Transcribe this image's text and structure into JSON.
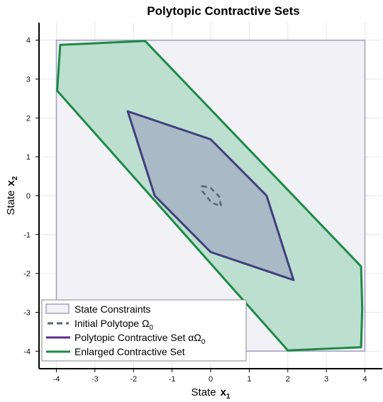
{
  "chart_data": {
    "type": "area",
    "title": "Polytopic Contractive Sets",
    "xlabel": "State",
    "xlabel_var": "x",
    "xlabel_sub": "1",
    "ylabel": "State",
    "ylabel_var": "x",
    "ylabel_sub": "2",
    "xlim": [
      -4.45,
      4.45
    ],
    "ylim": [
      -4.45,
      4.45
    ],
    "x_ticks": [
      -4,
      -3,
      -2,
      -1,
      0,
      1,
      2,
      3,
      4
    ],
    "y_ticks": [
      -4,
      -3,
      -2,
      -1,
      0,
      1,
      2,
      3,
      4
    ],
    "grid": true,
    "legend_position": "lower-left",
    "series": [
      {
        "key": "constraints",
        "name": "State Constraints",
        "kind": "filled",
        "fill": "#f1f1f6",
        "stroke": "#a5a2c0",
        "points": [
          [
            -4,
            -4
          ],
          [
            4,
            -4
          ],
          [
            4,
            4
          ],
          [
            -4,
            4
          ]
        ]
      },
      {
        "key": "enlarged",
        "name": "Enlarged Contractive Set",
        "kind": "filled",
        "fill": "#bddfd0",
        "stroke": "#1d8a46",
        "points": [
          [
            -1.7,
            3.98
          ],
          [
            -3.9,
            3.88
          ],
          [
            -3.98,
            2.7
          ],
          [
            2.0,
            -3.98
          ],
          [
            3.9,
            -3.9
          ],
          [
            3.93,
            -2.9
          ],
          [
            3.9,
            -1.82
          ]
        ]
      },
      {
        "key": "alpha",
        "name": "Polytopic Contractive Set αΩ",
        "name_sub": "0",
        "kind": "filled",
        "fill": "#a9b9c5",
        "stroke": "#403e7e",
        "points": [
          [
            -2.15,
            2.17
          ],
          [
            0.0,
            1.45
          ],
          [
            1.45,
            0.0
          ],
          [
            2.15,
            -2.17
          ],
          [
            0.0,
            -1.45
          ],
          [
            -1.45,
            0.0
          ]
        ]
      },
      {
        "key": "initial",
        "name": "Initial Polytope Ω",
        "name_sub": "0",
        "kind": "dashed",
        "stroke": "#5e6478",
        "points": [
          [
            -0.22,
            0.25
          ],
          [
            0.0,
            0.2
          ],
          [
            0.22,
            -0.02
          ],
          [
            0.27,
            -0.27
          ],
          [
            0.03,
            -0.18
          ],
          [
            -0.22,
            0.12
          ]
        ]
      }
    ],
    "legend": [
      {
        "key": "constraints",
        "label": "State Constraints",
        "swatch": "box",
        "color": "#a5a2c0"
      },
      {
        "key": "initial",
        "label": "Initial  Polytope  Ω",
        "sub": "0",
        "swatch": "dash",
        "color": "#5e6478"
      },
      {
        "key": "alpha",
        "label": "Polytopic  Contractive  Set  αΩ",
        "sub": "0",
        "swatch": "line",
        "color": "#5b2e91"
      },
      {
        "key": "enlarged",
        "label": "Enlarged Contractive Set",
        "swatch": "line",
        "color": "#1d8a46"
      }
    ]
  }
}
